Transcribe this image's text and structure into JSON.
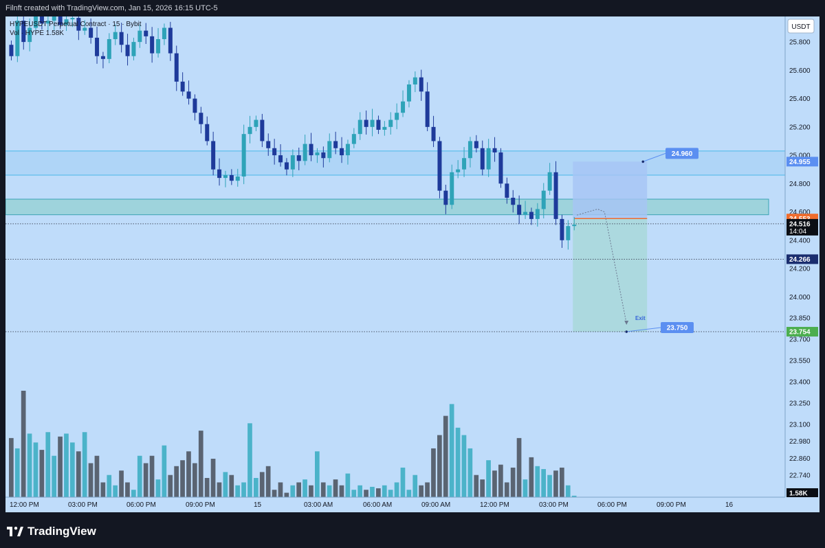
{
  "header": {
    "caption": "Filnft created with TradingView.com, Jan 15, 2026 16:15 UTC-5"
  },
  "footer": {
    "brand": "TradingView"
  },
  "colors": {
    "background": "#bfdcfa",
    "bull": "#2ea3b8",
    "bear": "#1e3a9a",
    "vol_bull": "#4bb3c9",
    "vol_bear": "#5a6472",
    "zone": "#9ed3dc",
    "target_zone": "#a7d8d8",
    "stop_zone": "#a6c4f5",
    "label_blue": "#5b8ff1",
    "entry_orange": "#f06c2c",
    "tp_green": "#4cae4f",
    "dark_label": "#1a2d6e"
  },
  "chart_data": {
    "type": "candlestick",
    "symbol_line": "HYPEUSDT Perpetual Contract · 15 · Bybit",
    "volume_line": "Vol · HYPE 1.58K",
    "currency": "USDT",
    "ylim": [
      22.6,
      25.98
    ],
    "y_ticks": [
      "25.800",
      "25.600",
      "25.400",
      "25.200",
      "25.000",
      "24.800",
      "24.600",
      "24.400",
      "24.200",
      "24.000",
      "23.850",
      "23.700",
      "23.550",
      "23.400",
      "23.250",
      "23.100",
      "22.980",
      "22.860",
      "22.740"
    ],
    "x_ticks": [
      "12:00 PM",
      "03:00 PM",
      "06:00 PM",
      "09:00 PM",
      "15",
      "03:00 AM",
      "06:00 AM",
      "09:00 AM",
      "12:00 PM",
      "03:00 PM",
      "06:00 PM",
      "09:00 PM",
      "16"
    ],
    "candles_close": [
      25.7,
      25.95,
      25.8,
      25.9,
      25.98,
      25.93,
      25.95,
      25.99,
      25.92,
      25.96,
      25.97,
      25.88,
      25.9,
      25.83,
      25.7,
      25.68,
      25.82,
      25.87,
      25.78,
      25.7,
      25.8,
      25.88,
      25.84,
      25.72,
      25.82,
      25.9,
      25.72,
      25.52,
      25.45,
      25.4,
      25.3,
      25.22,
      25.1,
      24.9,
      24.84,
      24.86,
      24.82,
      24.85,
      25.15,
      25.2,
      25.25,
      25.1,
      25.05,
      25.0,
      24.95,
      24.9,
      25.0,
      24.96,
      25.08,
      25.0,
      25.02,
      24.98,
      25.1,
      25.05,
      25.0,
      25.08,
      25.15,
      25.25,
      25.2,
      25.25,
      25.18,
      25.2,
      25.25,
      25.3,
      25.38,
      25.5,
      25.55,
      25.45,
      25.2,
      25.1,
      24.75,
      24.65,
      24.88,
      24.9,
      24.98,
      25.1,
      25.05,
      24.9,
      25.05,
      25.02,
      24.8,
      24.7,
      24.65,
      24.58,
      24.6,
      24.55,
      24.62,
      24.75,
      24.88,
      24.55,
      24.4,
      24.5,
      24.51
    ],
    "candles_dir": "b,u,b,u,u,b,u,u,b,u,u,b,u,b,b,b,u,u,b,b,u,u,b,b,u,u,b,b,b,b,b,b,b,b,b,u,b,u,u,u,u,b,b,b,b,b,u,b,u,b,u,b,u,b,b,u,u,u,b,u,b,u,u,u,u,u,u,b,b,b,b,b,u,u,u,u,b,b,u,b,b,b,b,b,u,b,u,u,u,b,b,u,u",
    "volume": [
      40,
      33,
      72,
      43,
      37,
      32,
      44,
      28,
      41,
      43,
      37,
      31,
      44,
      23,
      28,
      10,
      15,
      8,
      18,
      10,
      5,
      28,
      23,
      28,
      12,
      35,
      15,
      21,
      25,
      31,
      23,
      45,
      13,
      26,
      10,
      17,
      15,
      8,
      10,
      50,
      13,
      17,
      21,
      5,
      10,
      3,
      8,
      10,
      12,
      8,
      31,
      10,
      8,
      12,
      8,
      16,
      5,
      8,
      5,
      7,
      6,
      8,
      5,
      10,
      20,
      5,
      15,
      8,
      10,
      33,
      42,
      55,
      63,
      47,
      42,
      33,
      15,
      12,
      25,
      18,
      22,
      10,
      20,
      40,
      12,
      27,
      21,
      19,
      15,
      18,
      20,
      8,
      1
    ],
    "volume_unit": "",
    "levels": {
      "zone_top": 25.03,
      "zone_mid_line": 24.86,
      "demand_zone_top": 24.69,
      "demand_zone_bottom": 24.58,
      "entry": 24.553,
      "current": 24.516,
      "support": 24.266,
      "target": 23.754
    },
    "price_labels": {
      "current_price": "24.516",
      "countdown": "14:04",
      "entry": "24.553",
      "support": "24.266",
      "zone": "24.955",
      "target": "23.754",
      "volume_last": "1.58K"
    },
    "annotations": {
      "stop_label": "24.960",
      "target_label": "23.750",
      "exit_text": "Exit"
    }
  }
}
